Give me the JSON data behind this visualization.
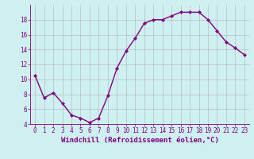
{
  "x": [
    0,
    1,
    2,
    3,
    4,
    5,
    6,
    7,
    8,
    9,
    10,
    11,
    12,
    13,
    14,
    15,
    16,
    17,
    18,
    19,
    20,
    21,
    22,
    23
  ],
  "y": [
    10.5,
    7.5,
    8.2,
    6.8,
    5.2,
    4.8,
    4.2,
    4.8,
    7.8,
    11.5,
    13.8,
    15.5,
    17.5,
    18.0,
    18.0,
    18.5,
    19.0,
    19.0,
    19.0,
    18.0,
    16.5,
    15.0,
    14.2,
    13.3
  ],
  "line_color": "#800080",
  "marker": "D",
  "marker_size": 2.0,
  "bg_color": "#cff0f0",
  "grid_color": "#b0b0b0",
  "xlabel": "Windchill (Refroidissement éolien,°C)",
  "ylabel": "",
  "ylim": [
    4,
    20
  ],
  "xlim": [
    -0.5,
    23.5
  ],
  "yticks": [
    4,
    6,
    8,
    10,
    12,
    14,
    16,
    18
  ],
  "xticks": [
    0,
    1,
    2,
    3,
    4,
    5,
    6,
    7,
    8,
    9,
    10,
    11,
    12,
    13,
    14,
    15,
    16,
    17,
    18,
    19,
    20,
    21,
    22,
    23
  ],
  "tick_color": "#800080",
  "tick_fontsize": 5.5,
  "xlabel_fontsize": 6.5,
  "line_width": 1.0
}
